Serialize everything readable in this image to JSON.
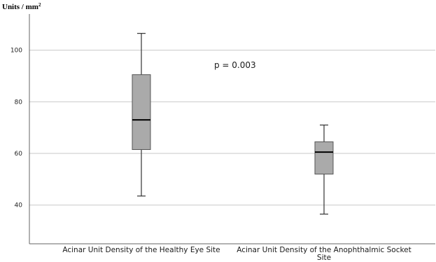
{
  "chart_data": {
    "type": "box",
    "ylabel": "Units / mm",
    "ylabel_superscript": "2",
    "ylim": [
      25,
      114
    ],
    "yticks": [
      40,
      60,
      80,
      100
    ],
    "grid": "horizontal",
    "categories": [
      [
        "Acinar Unit Density of the Healthy Eye Site"
      ],
      [
        "Acinar Unit Density of the Anophthalmic Socket",
        "Site"
      ]
    ],
    "boxes": [
      {
        "min": 43.5,
        "q1": 61.5,
        "median": 73,
        "q3": 90.5,
        "max": 106.5
      },
      {
        "min": 36.5,
        "q1": 52,
        "median": 60.5,
        "q3": 64.5,
        "max": 71
      }
    ],
    "annotation": "p = 0.003",
    "colors": {
      "box_fill": "#aaaaaa",
      "box_stroke": "#555555",
      "median": "#000000",
      "whisker": "#333333",
      "grid": "#c8c8c8",
      "axis": "#666666"
    }
  }
}
